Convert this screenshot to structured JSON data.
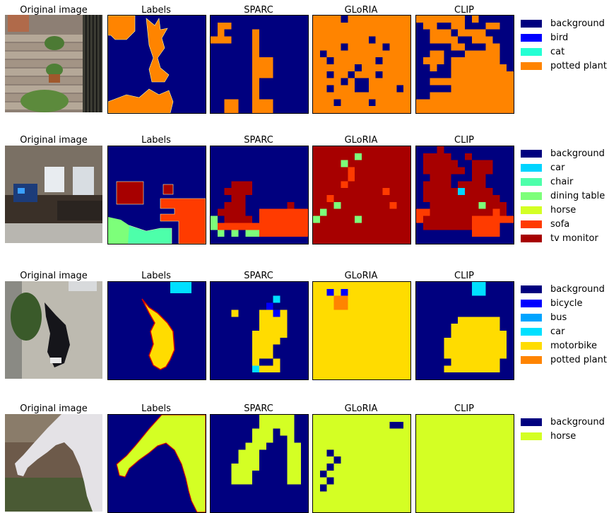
{
  "column_titles": [
    "Original image",
    "Labels",
    "SPARC",
    "GLoRIA",
    "CLIP"
  ],
  "rows": [
    {
      "legend": [
        {
          "label": "background",
          "color": "#00007f"
        },
        {
          "label": "bird",
          "color": "#0000ff"
        },
        {
          "label": "cat",
          "color": "#24ffd4"
        },
        {
          "label": "potted plant",
          "color": "#ff8400"
        }
      ],
      "photo_description_icon": "potted-plants-on-steps-photo",
      "sparc_grid": [
        "BBBBBBBBBBBBBB",
        "BPPBBBBBBBBBBB",
        "BPBBBBPBBBBBBB",
        "PPPBBBPBBBBBBB",
        "BBBBBBPBBBBBBB",
        "BBBBBBPBBBBBBB",
        "BBBBBBPPPBBBBB",
        "BBBBBBPPPBBBBB",
        "BBBBBBPPPBBBBB",
        "BBBBBBPBBBBBBB",
        "BBBBBBPBBBBBBB",
        "BBBBBBPBBBBBBB",
        "BBPPBBPPPBBBBB",
        "BBPPBBPPPBBBBB"
      ],
      "gloria_grid": [
        "PPPPBPPPPPPPPP",
        "PPPPPPPPPPPPPP",
        "PPPPPPPPPPPPPP",
        "PPPPPPPPBPPPPP",
        "PPPPBPPPPPBPPP",
        "PBPPPPPPPPPPPP",
        "PPBPPPPPPBPPPP",
        "PPPPPPBPPPPPPP",
        "PPBPPBPPPBPPPP",
        "PPPPBPBBPPPPPP",
        "PPBPPPBBPPPPBP",
        "PPPPPPPPPPPPPP",
        "PPPBPPPPBPPPPP",
        "PPPPPPPPPPPPPP"
      ],
      "clip_grid": [
        "PPPPPPPBPBBBBB",
        "BPPBBPPBBBPPBB",
        "BBPPPBPPPPBBBB",
        "BBPPPPBBPPPBBB",
        "BBBBBPPBBBPPBB",
        "BBPPBBBPPPPPBB",
        "BPPPBPPPPPPPBB",
        "BBPBBPPPPPPPPB",
        "BBBBBPPPPPPPPP",
        "BBPPPPPPPPPPPP",
        "BBBBBPPPPPPPPP",
        "BBPPPPPPPPPPPP",
        "PPPPPPPPPPPPPP",
        "PPPPPPPPPPPPPP"
      ]
    },
    {
      "legend": [
        {
          "label": "background",
          "color": "#00007f"
        },
        {
          "label": "car",
          "color": "#00d4ff"
        },
        {
          "label": "chair",
          "color": "#4dffaa"
        },
        {
          "label": "dining table",
          "color": "#7dff7a"
        },
        {
          "label": "horse",
          "color": "#d4ff24"
        },
        {
          "label": "sofa",
          "color": "#ff3b00"
        },
        {
          "label": "tv monitor",
          "color": "#a70000"
        }
      ],
      "photo_description_icon": "living-room-tv-photo",
      "sparc_grid": [
        "BBBBBBBBBBBBBB",
        "BBBBBBBBBBBBBB",
        "BBBBBBBBBBBBBB",
        "BBBBBBBBBBBBBB",
        "BBBBBBBBBBBBBB",
        "BBBMMMBBBBBBBB",
        "BBMMMMBBBBBBBB",
        "BBBMMBBBBBBBBB",
        "BBMMMBBBBBBMBB",
        "BMMMMBBSSSSSSS",
        "DBMMMMBSSSSSSS",
        "DSSSSSSSSSSSSS",
        "BDBDBDDSSSSSSS",
        "BBBBBBBBBBBBBB"
      ],
      "gloria_grid": [
        "MMMMMMMMMMMMMM",
        "MMMMMMDMMMMMMM",
        "MMMMDMMMMMMMMM",
        "MMMMMSMMMMMMMM",
        "MMMMMSMMMMMMMM",
        "MMMMSMMMMMMMMM",
        "MMMMMMMMMMSMMM",
        "MMSMMMMMMMMMMM",
        "MMMDMMMMMMMSMM",
        "MDMMMMMMMMMMMM",
        "DMMMMMDMMMMMMM",
        "MMMMMMMMMMMMMM",
        "MMMMMMMMMMMMMM",
        "MMMMMMMMMMMMMM"
      ],
      "clip_grid": [
        "BBBMBBBBBBBBBB",
        "BMMMMBBMBBBBBB",
        "BMMMMMBBMMMBBB",
        "BMMMMMMBMMMBBB",
        "BBMMMBBBMMBBBB",
        "BMMMMBMMMMBBBB",
        "BMMMMMCMMMMBBB",
        "BMMMMMMMMMMMBB",
        "BBMMMMMMMDMMMB",
        "SSMMMMMMMMMSMB",
        "SMMMMMMMSSSSSS",
        "BMMMMMMMSSSSBB",
        "BBBBBBBBSSSSBB",
        "BBBBBBBBBBBBBB"
      ]
    },
    {
      "legend": [
        {
          "label": "background",
          "color": "#00007f"
        },
        {
          "label": "bicycle",
          "color": "#0000ff"
        },
        {
          "label": "bus",
          "color": "#00a4ff"
        },
        {
          "label": "car",
          "color": "#00e0ff"
        },
        {
          "label": "motorbike",
          "color": "#ffdc00"
        },
        {
          "label": "potted plant",
          "color": "#ff8400"
        }
      ],
      "photo_description_icon": "motorcycle-on-street-photo",
      "sparc_grid": [
        "BBBBBBBBBBBBBB",
        "BBBBBBBBBBBBBB",
        "BBBBBBBBBCBBBB",
        "BBBBBBBBEBBBBB",
        "BBBMBBBMMEMBBB",
        "BBBBBBBMMMMBBB",
        "BBBBBBBMMMMBBB",
        "BBBBBBMMMMMBBB",
        "BBBBBBMMMMBBBB",
        "BBBBBBMMMBBBBB",
        "BBBBBBMMMBBBBB",
        "BBBBBBMBBMBBBB",
        "BBBBBBCMMMBBBB",
        "BBBBBBBBBBBBBB"
      ],
      "gloria_grid": [
        "MMMMMMMMMMMMMM",
        "MMEMEMMMMMMMMM",
        "MMMPPMMMMMMMMM",
        "MMMPPMMMMMMMMM",
        "MMMMMMMMMMMMMM",
        "MMMMMMMMMMMMMM",
        "MMMMMMMMMMMMMM",
        "MMMMMMMMMMMMMM",
        "MMMMMMMMMMMMMM",
        "MMMMMMMMMMMMMM",
        "MMMMMMMMMMMMMM",
        "MMMMMMMMMMMMMM",
        "MMMMMMMMMMMMMM",
        "MMMMMMMMMMMMMM"
      ],
      "clip_grid": [
        "BBBBBBBBCCBBBB",
        "BBBBBBBBCCBBBB",
        "BBBBBBBBBBBBBB",
        "BBBBBBBBBBBBBB",
        "BBBBBBBBBBBBBB",
        "BBBBBBMMMMMMBB",
        "BBBBBMMMMMMMBB",
        "BBBBBMMMMMMMMB",
        "BBBBMMMMMMMMMB",
        "BBBBMMMMMMMMMB",
        "BBBBMMMMMMMMMB",
        "BBBBBMMMMMMMBB",
        "BBBBMMMMMMMMBB",
        "BBBBBBBBBBBBBB"
      ]
    },
    {
      "legend": [
        {
          "label": "background",
          "color": "#00007f"
        },
        {
          "label": "horse",
          "color": "#d4ff24"
        }
      ],
      "photo_description_icon": "white-horse-grazing-photo",
      "sparc_grid": [
        "BBBBBBBHHHHHBB",
        "BBBBBBBHHHHHBB",
        "BBBBBBHHHBHHBB",
        "BBBBBBHHHBBHBB",
        "BBBBBHHHBBBHHB",
        "BBBBHHHBBBBHHB",
        "BBBBHHHBBBBHHB",
        "BBBHHHHBBBBHHB",
        "BBBHHHBBBBBHHB",
        "BBBHHHBBBBBHHB",
        "BBBBBBBBBBBBBB",
        "BBBBBBBBBBBBBB",
        "BBBBBBBBBBBBBB",
        "BBBBBBBBBBBBBB"
      ],
      "gloria_grid": [
        "HHHHHHHHHHHHHH",
        "HHHHHHHHHHHBBH",
        "HHHHHHHHHHHHHH",
        "HHHHHHHHHHHHHH",
        "HHHHHHHHHHHHHH",
        "HHBHHHHHHHHHHH",
        "HHHBHHHHHHHHHH",
        "HHBHHHHHHHHHHH",
        "HBHHHHHHHHHHHH",
        "HHBHHHHHHHHHHH",
        "HBHHHHHHHHHHHH",
        "HHHHHHHHHHHHHH",
        "HHHHHHHHHHHHHH",
        "HHHHHHHHHHHHHH"
      ],
      "clip_grid": [
        "HHHHHHHHHHHHHH",
        "HHHHHHHHHHHHHH",
        "HHHHHHHHHHHHHH",
        "HHHHHHHHHHHHHH",
        "HHHHHHHHHHHHHH",
        "HHHHHHHHHHHHHH",
        "HHHHHHHHHHHHHH",
        "HHHHHHHHHHHHHH",
        "HHHHHHHHHHHHHH",
        "HHHHHHHHHHHHHH",
        "HHHHHHHHHHHHHH",
        "HHHHHHHHHHHHHH",
        "HHHHHHHHHHHHHH",
        "HHHHHHHHHHHHHH"
      ]
    }
  ]
}
